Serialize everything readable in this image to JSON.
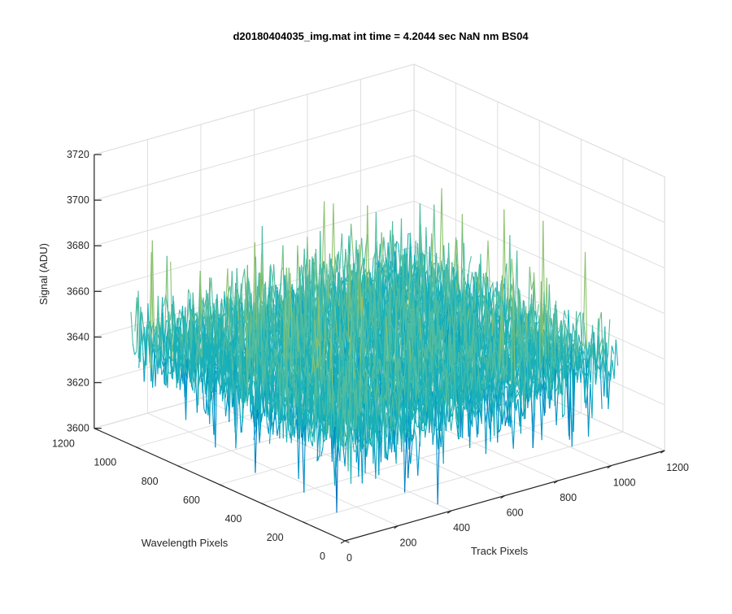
{
  "chart_data": {
    "type": "surface",
    "title": "d20180404035_img.mat int time = 4.2044 sec  NaN nm BS04",
    "xlabel": "Track Pixels",
    "ylabel": "Wavelength Pixels",
    "zlabel": "Signal (ADU)",
    "xlim": [
      0,
      1200
    ],
    "ylim": [
      0,
      1200
    ],
    "zlim": [
      3600,
      3720
    ],
    "xticks": [
      "0",
      "200",
      "400",
      "600",
      "800",
      "1000",
      "1200"
    ],
    "yticks": [
      "0",
      "200",
      "400",
      "600",
      "800",
      "1000",
      "1200"
    ],
    "zticks": [
      "3600",
      "3620",
      "3640",
      "3660",
      "3680",
      "3700",
      "3720"
    ],
    "data_extent": {
      "x": [
        0,
        1024
      ],
      "y": [
        0,
        1024
      ]
    },
    "signal_mean": 3645,
    "signal_noise_std": 9,
    "signal_range": [
      3612,
      3700
    ],
    "grid": true,
    "colormap": [
      "#0072BD",
      "#0096C8",
      "#1AB0B8",
      "#50BCA0",
      "#8DC26E",
      "#C4BD44",
      "#EDB120"
    ]
  }
}
